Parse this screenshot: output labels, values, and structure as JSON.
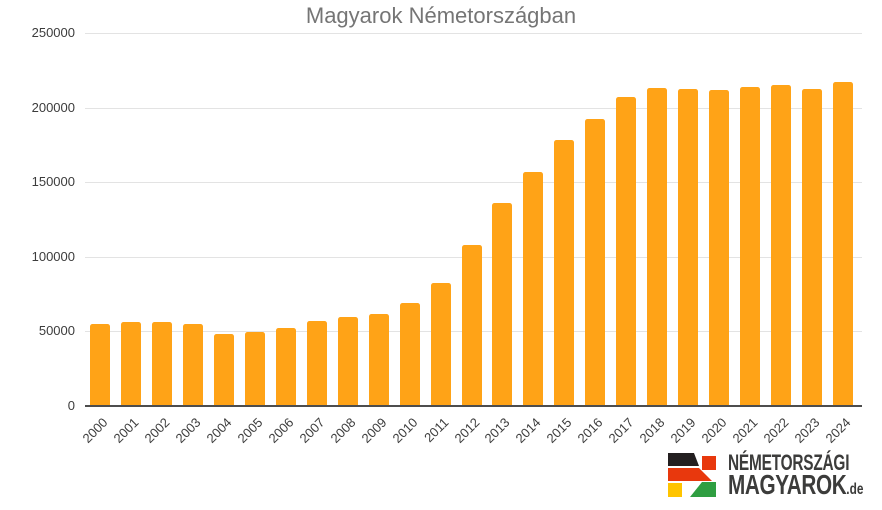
{
  "title": "Magyarok Németországban",
  "chart_data": {
    "type": "bar",
    "title": "Magyarok Németországban",
    "categories": [
      "2000",
      "2001",
      "2002",
      "2003",
      "2004",
      "2005",
      "2006",
      "2007",
      "2008",
      "2009",
      "2010",
      "2011",
      "2012",
      "2013",
      "2014",
      "2015",
      "2016",
      "2017",
      "2018",
      "2019",
      "2020",
      "2021",
      "2022",
      "2023",
      "2024"
    ],
    "values": [
      54500,
      55500,
      55500,
      54500,
      47800,
      49200,
      51500,
      56500,
      59000,
      61000,
      68500,
      82000,
      107000,
      135500,
      156500,
      177500,
      192000,
      206500,
      212500,
      212000,
      211000,
      213000,
      214500,
      211500,
      216500
    ],
    "xlabel": "",
    "ylabel": "",
    "ylim": [
      0,
      250000
    ],
    "yticks": [
      0,
      50000,
      100000,
      150000,
      200000,
      250000
    ],
    "grid": true,
    "legend": "none",
    "bar_color": "#FFA317",
    "title_color": "#757575",
    "axis_label_color": "#3c3c3c",
    "gridline_color": "#e3e3e3",
    "baseline_color": "#4d4d4d"
  },
  "logo": {
    "line1": "NÉMETORSZÁGI",
    "line2": "MAGYAROK",
    "line2_suffix": ".de",
    "text_color": "#3c3c3b",
    "flag_colors": {
      "black": "#231f20",
      "red": "#e8380d",
      "yellow": "#ffc400",
      "green": "#2f9e41"
    }
  }
}
